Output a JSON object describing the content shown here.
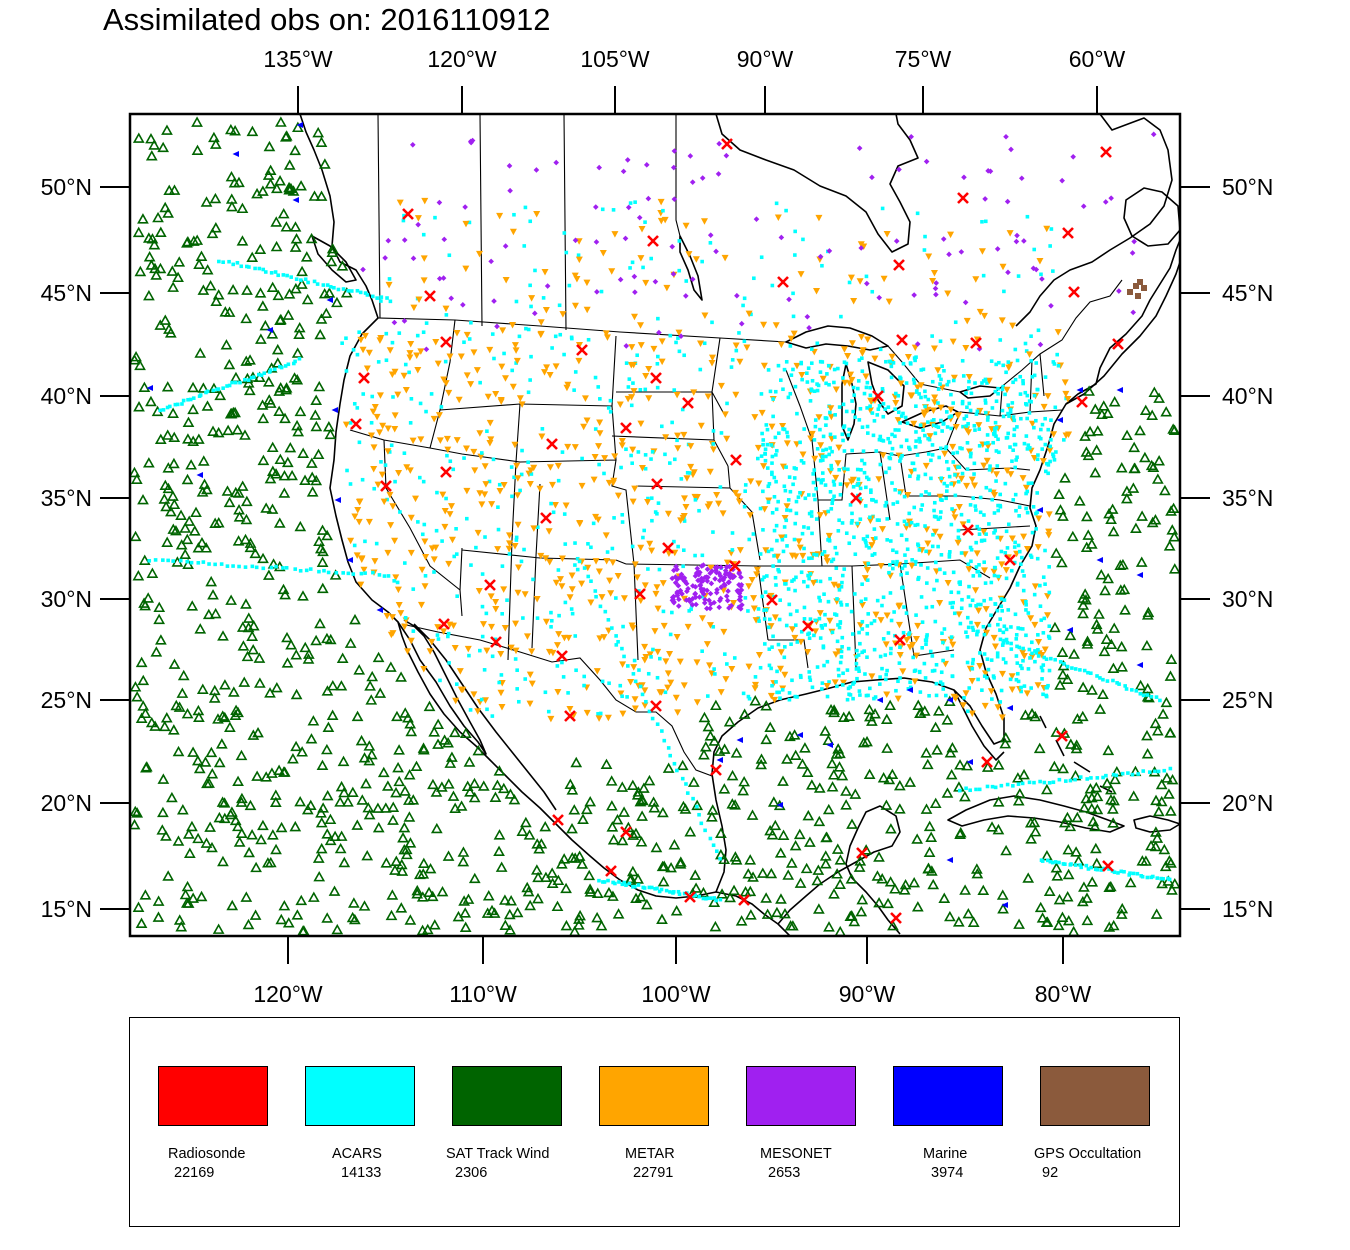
{
  "title": "Assimilated obs on: 2016110912",
  "map": {
    "top_lon_labels": [
      "135°W",
      "120°W",
      "105°W",
      "90°W",
      "75°W",
      "60°W"
    ],
    "bottom_lon_labels": [
      "120°W",
      "110°W",
      "100°W",
      "90°W",
      "80°W"
    ],
    "lat_labels": [
      "50°N",
      "45°N",
      "40°N",
      "35°N",
      "30°N",
      "25°N",
      "20°N",
      "15°N"
    ],
    "lat_values": [
      50,
      45,
      40,
      35,
      30,
      25,
      20,
      15
    ],
    "frame_color": "#000000",
    "coastline_color": "#000000",
    "domain_lat_range": [
      13.6,
      53.5
    ],
    "domain_lon_range": [
      -128,
      -74
    ]
  },
  "legend": {
    "items": [
      {
        "name": "Radiosonde",
        "count": "22169",
        "color": "#ff0000",
        "symbol": "x-mark"
      },
      {
        "name": "ACARS",
        "count": "14133",
        "color": "#00ffff",
        "symbol": "square-dot"
      },
      {
        "name": "SAT Track Wind",
        "count": "2306",
        "color": "#006400",
        "symbol": "triangle-up"
      },
      {
        "name": "METAR",
        "count": "22791",
        "color": "#ffa500",
        "symbol": "triangle-down"
      },
      {
        "name": "MESONET",
        "count": "2653",
        "color": "#a020f0",
        "symbol": "diamond"
      },
      {
        "name": "Marine",
        "count": "3974",
        "color": "#0000ff",
        "symbol": "triangle-left"
      },
      {
        "name": "GPS Occultation",
        "count": "92",
        "color": "#8b5a3c",
        "symbol": "square"
      }
    ]
  }
}
